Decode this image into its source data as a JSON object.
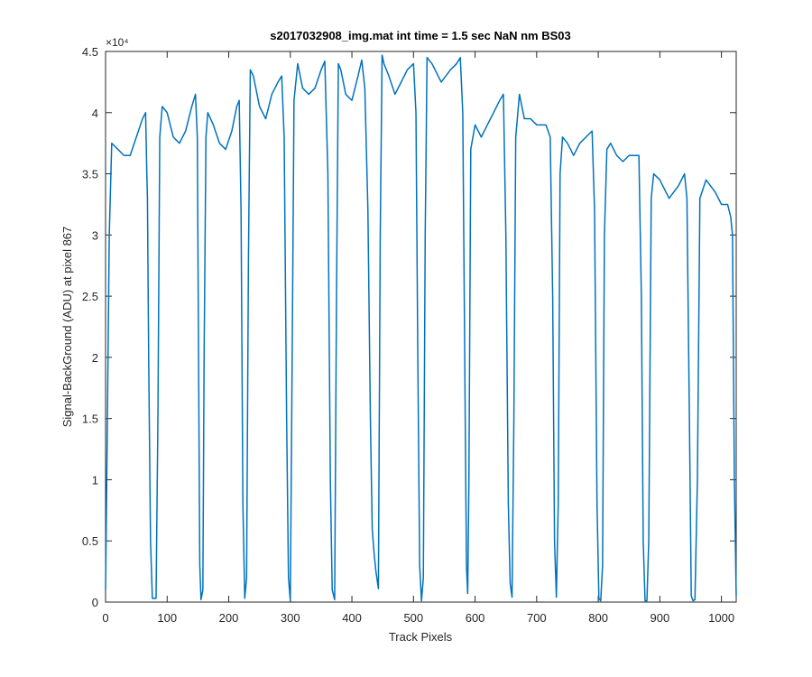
{
  "chart_data": {
    "type": "line",
    "title": "s2017032908_img.mat int time = 1.5 sec  NaN nm BS03",
    "x_label": "Track Pixels",
    "y_label": "Signal-BackGround (ADU) at pixel 867",
    "y_exponent_label": "×10⁴",
    "xlim": [
      0,
      1024
    ],
    "ylim": [
      0,
      45000
    ],
    "xticks": [
      0,
      100,
      200,
      300,
      400,
      500,
      600,
      700,
      800,
      900,
      1000
    ],
    "yticks": [
      0,
      {
        "value": 5000,
        "label": "0.5"
      },
      {
        "value": 10000,
        "label": "1"
      },
      {
        "value": 15000,
        "label": "1.5"
      },
      {
        "value": 20000,
        "label": "2"
      },
      {
        "value": 25000,
        "label": "2.5"
      },
      {
        "value": 30000,
        "label": "3"
      },
      {
        "value": 35000,
        "label": "3.5"
      },
      {
        "value": 40000,
        "label": "4"
      },
      {
        "value": 45000,
        "label": "4.5"
      }
    ],
    "grid": false,
    "series": [
      {
        "color": "#0072bd",
        "x": [
          0,
          3,
          6,
          10,
          20,
          30,
          40,
          50,
          60,
          65,
          67,
          68,
          70,
          73,
          76,
          82,
          85,
          88,
          92,
          100,
          110,
          120,
          130,
          140,
          146,
          149,
          151,
          153,
          155,
          158,
          160,
          163,
          166,
          175,
          185,
          195,
          205,
          213,
          217,
          220,
          223,
          226,
          229,
          232,
          235,
          240,
          250,
          260,
          270,
          280,
          286,
          290,
          294,
          297,
          300,
          303,
          306,
          312,
          320,
          330,
          340,
          350,
          356,
          361,
          365,
          368,
          372,
          375,
          378,
          382,
          390,
          400,
          410,
          416,
          421,
          426,
          430,
          433,
          436,
          439,
          443,
          446,
          449,
          452,
          460,
          470,
          480,
          490,
          500,
          504,
          507,
          510,
          513,
          516,
          519,
          522,
          530,
          545,
          560,
          570,
          576,
          580,
          584,
          586,
          588,
          590,
          593,
          600,
          610,
          620,
          630,
          640,
          646,
          650,
          654,
          657,
          660,
          663,
          666,
          672,
          680,
          690,
          700,
          715,
          722,
          726,
          729,
          732,
          735,
          738,
          742,
          750,
          760,
          770,
          780,
          790,
          794,
          798,
          801,
          804,
          807,
          810,
          814,
          820,
          830,
          840,
          850,
          860,
          866,
          870,
          873,
          876,
          879,
          882,
          886,
          890,
          900,
          915,
          930,
          940,
          944,
          948,
          951,
          954,
          957,
          961,
          965,
          975,
          990,
          1000,
          1010,
          1015,
          1018,
          1021,
          1024
        ],
        "values": [
          1000,
          15000,
          30000,
          37500,
          37000,
          36500,
          36500,
          38000,
          39500,
          40000,
          35000,
          33000,
          20000,
          5000,
          300,
          300,
          15000,
          38000,
          40500,
          40000,
          38000,
          37500,
          38500,
          40500,
          41500,
          38000,
          20000,
          3000,
          200,
          1000,
          20000,
          38000,
          40000,
          39000,
          37500,
          37000,
          38500,
          40500,
          41000,
          32000,
          8000,
          300,
          2000,
          28000,
          43500,
          43000,
          40500,
          39500,
          41500,
          42500,
          43000,
          38000,
          15000,
          2000,
          100,
          20000,
          41000,
          44000,
          42000,
          41500,
          42000,
          43500,
          44200,
          35000,
          10000,
          1000,
          200,
          25000,
          44000,
          43500,
          41500,
          41000,
          43000,
          44300,
          42000,
          32000,
          15000,
          6000,
          4000,
          2500,
          1100,
          30000,
          44700,
          44000,
          43000,
          41500,
          42500,
          43500,
          44000,
          40000,
          20000,
          3000,
          100,
          2000,
          30000,
          44500,
          44000,
          42500,
          43500,
          44000,
          44500,
          40000,
          15000,
          3000,
          700,
          10000,
          37000,
          39000,
          38000,
          39000,
          40000,
          41000,
          41500,
          30000,
          8000,
          1500,
          400,
          15000,
          38000,
          41500,
          39500,
          39500,
          39000,
          39000,
          38000,
          25000,
          5000,
          400,
          8000,
          35000,
          38000,
          37500,
          36500,
          37500,
          38000,
          38500,
          32000,
          8000,
          300,
          100,
          3000,
          30000,
          37000,
          37500,
          36500,
          36000,
          36500,
          36500,
          36500,
          25000,
          5000,
          100,
          100,
          5000,
          33000,
          35000,
          34500,
          33000,
          34000,
          35000,
          33000,
          15000,
          500,
          100,
          200,
          10000,
          33000,
          34500,
          33500,
          32500,
          32500,
          31500,
          30000,
          10000,
          500
        ]
      }
    ]
  }
}
